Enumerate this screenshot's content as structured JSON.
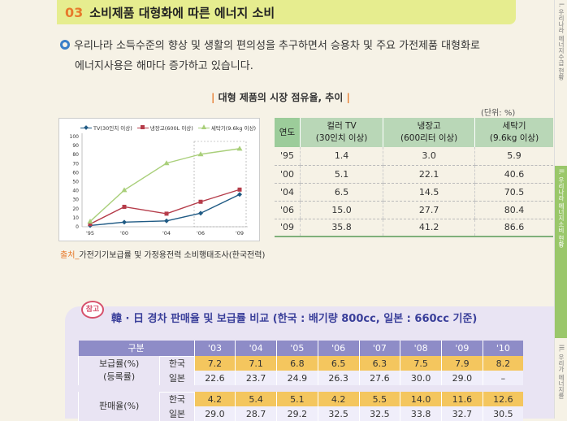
{
  "section": {
    "number": "03",
    "title": "소비제품 대형화에 따른 에너지 소비"
  },
  "intro": {
    "line1": "우리나라 소득수준의 향상 및 생활의 편의성을 추구하면서 승용차 및 주요 가전제품 대형화로",
    "line2": "에너지사용은 해마다 증가하고 있습니다."
  },
  "market": {
    "title": "대형 제품의 시장 점유율, 추이",
    "unit": "(단위: %)",
    "source_label": "출처_",
    "source_text": "가전기기보급률 및 가정용전력 소비행태조사(한국전력)",
    "table": {
      "headers": [
        "연도",
        "컬러 TV",
        "(30인치 이상)",
        "냉장고",
        "(600리터 이상)",
        "세탁기",
        "(9.6kg 이상)"
      ],
      "rows": [
        [
          "'95",
          "1.4",
          "3.0",
          "5.9"
        ],
        [
          "'00",
          "5.1",
          "22.1",
          "40.6"
        ],
        [
          "'04",
          "6.5",
          "14.5",
          "70.5"
        ],
        [
          "'06",
          "15.0",
          "27.7",
          "80.4"
        ],
        [
          "'09",
          "35.8",
          "41.2",
          "86.6"
        ]
      ]
    }
  },
  "chart_data": {
    "type": "line",
    "title": "",
    "xlabel": "",
    "ylabel": "",
    "categories": [
      "'95",
      "'00",
      "'04",
      "'06",
      "'09"
    ],
    "x_tick_labels": [
      "'95",
      "'00",
      "'04",
      "'06",
      "'09"
    ],
    "y_ticks": [
      0,
      10,
      20,
      30,
      40,
      50,
      60,
      70,
      80,
      90,
      100
    ],
    "ylim": [
      0,
      100
    ],
    "legend_position": "top",
    "series": [
      {
        "name": "TV(30인치 이상)",
        "color": "#1f5a84",
        "marker": "diamond",
        "values": [
          1.4,
          5.1,
          6.5,
          15.0,
          35.8
        ]
      },
      {
        "name": "냉장고(600L 이상)",
        "color": "#b53c4a",
        "marker": "square",
        "values": [
          3.0,
          22.1,
          14.5,
          27.7,
          41.2
        ]
      },
      {
        "name": "세탁기(9.6kg 이상)",
        "color": "#a9cf7a",
        "marker": "triangle",
        "values": [
          5.9,
          40.6,
          70.5,
          80.4,
          86.6
        ]
      }
    ]
  },
  "reference": {
    "badge": "참고",
    "title": "韓 · 日 경차 판매율 및 보급률 비교 (한국 : 배기량 800cc, 일본 : 660cc 기준)",
    "table": {
      "header_first": "구분",
      "years": [
        "'03",
        "'04",
        "'05",
        "'06",
        "'07",
        "'08",
        "'09",
        "'10"
      ],
      "groups": [
        {
          "label1": "보급률(%)",
          "label2": "(등록률)",
          "rows": [
            {
              "country": "한국",
              "values": [
                "7.2",
                "7.1",
                "6.8",
                "6.5",
                "6.3",
                "7.5",
                "7.9",
                "8.2"
              ]
            },
            {
              "country": "일본",
              "values": [
                "22.6",
                "23.7",
                "24.9",
                "26.3",
                "27.6",
                "30.0",
                "29.0",
                "–"
              ]
            }
          ]
        },
        {
          "label1": "판매율(%)",
          "label2": "",
          "rows": [
            {
              "country": "한국",
              "values": [
                "4.2",
                "5.4",
                "5.1",
                "4.2",
                "5.5",
                "14.0",
                "11.6",
                "12.6"
              ]
            },
            {
              "country": "일본",
              "values": [
                "29.0",
                "28.7",
                "29.2",
                "32.5",
                "32.5",
                "33.8",
                "32.7",
                "30.5"
              ]
            }
          ]
        }
      ]
    }
  },
  "side_tabs": [
    {
      "label": "I. 우리나라 에너지수급 현황",
      "active": false
    },
    {
      "label": "II. 우리나라 에너지소비 현황",
      "active": true
    },
    {
      "label": "III. 우리가 에너지를",
      "active": false
    }
  ]
}
